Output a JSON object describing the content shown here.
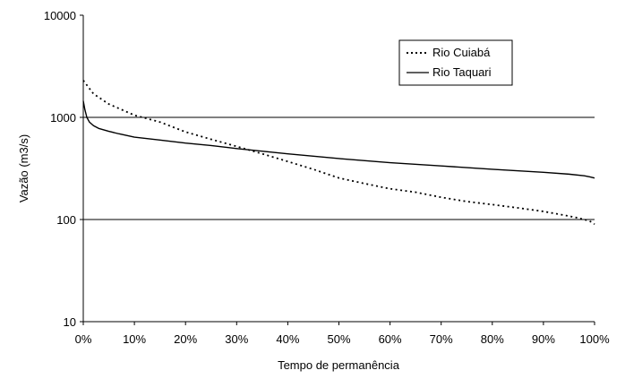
{
  "chart_data": {
    "type": "line",
    "title": "",
    "xlabel": "Tempo de permanência",
    "ylabel": "Vazão (m3/s)",
    "y_scale": "log",
    "ylim": [
      10,
      10000
    ],
    "xlim": [
      0,
      100
    ],
    "y_ticks": [
      10,
      100,
      1000,
      10000
    ],
    "y_tick_labels": [
      "10",
      "100",
      "1000",
      "10000"
    ],
    "x_ticks": [
      0,
      10,
      20,
      30,
      40,
      50,
      60,
      70,
      80,
      90,
      100
    ],
    "x_tick_labels": [
      "0%",
      "10%",
      "20%",
      "30%",
      "40%",
      "50%",
      "60%",
      "70%",
      "80%",
      "90%",
      "100%"
    ],
    "grid": "horizontal lines at 100 and 1000",
    "legend_position": "top-right",
    "series": [
      {
        "name": "Rio Cuiabá",
        "style": "dotted",
        "color": "#000000",
        "x": [
          0,
          2,
          5,
          10,
          15,
          20,
          25,
          30,
          35,
          40,
          45,
          50,
          55,
          60,
          65,
          70,
          75,
          80,
          85,
          90,
          95,
          97,
          99,
          100
        ],
        "y": [
          2300,
          1700,
          1350,
          1050,
          900,
          720,
          610,
          520,
          440,
          370,
          310,
          255,
          225,
          200,
          185,
          165,
          150,
          140,
          130,
          120,
          108,
          103,
          97,
          90
        ]
      },
      {
        "name": "Rio Taquari",
        "style": "solid",
        "color": "#000000",
        "x": [
          0,
          0.3,
          0.7,
          1.2,
          2,
          3,
          5,
          7,
          10,
          15,
          20,
          25,
          30,
          40,
          50,
          60,
          70,
          80,
          90,
          95,
          98,
          99,
          100
        ],
        "y": [
          1450,
          1200,
          1000,
          900,
          830,
          780,
          730,
          690,
          640,
          600,
          560,
          530,
          495,
          440,
          395,
          360,
          335,
          310,
          290,
          278,
          268,
          262,
          255
        ]
      }
    ]
  }
}
